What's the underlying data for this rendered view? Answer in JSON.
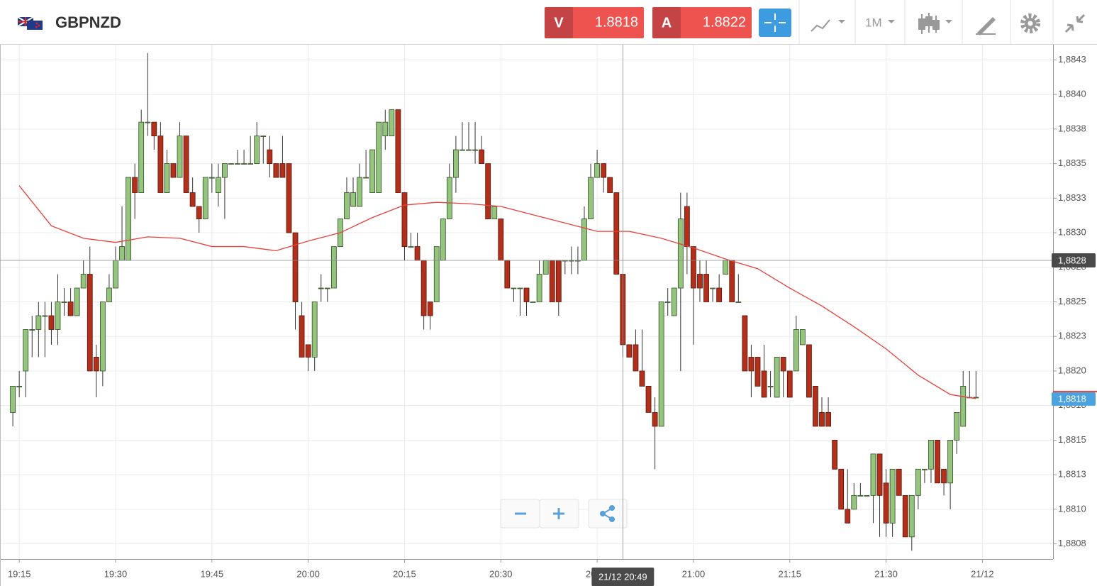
{
  "header": {
    "symbol": "GBPNZD",
    "sell_label": "V",
    "sell_price": "1.8818",
    "buy_label": "A",
    "buy_price": "1.8822",
    "timeframe": "1M"
  },
  "chart_data": {
    "type": "candlestick",
    "up_color": "#94c47d",
    "down_color": "#b1301c",
    "x": [
      "19:14",
      "19:15",
      "19:16",
      "19:17",
      "19:18",
      "19:19",
      "19:20",
      "19:21",
      "19:22",
      "19:23",
      "19:24",
      "19:25",
      "19:26",
      "19:27",
      "19:28",
      "19:29",
      "19:30",
      "19:31",
      "19:32",
      "19:33",
      "19:34",
      "19:35",
      "19:36",
      "19:37",
      "19:38",
      "19:39",
      "19:40",
      "19:41",
      "19:42",
      "19:43",
      "19:44",
      "19:45",
      "19:46",
      "19:47",
      "19:48",
      "19:49",
      "19:50",
      "19:51",
      "19:52",
      "19:53",
      "19:54",
      "19:55",
      "19:56",
      "19:57",
      "19:58",
      "19:59",
      "20:00",
      "20:01",
      "20:02",
      "20:03",
      "20:04",
      "20:05",
      "20:06",
      "20:07",
      "20:08",
      "20:09",
      "20:10",
      "20:11",
      "20:12",
      "20:13",
      "20:14",
      "20:15",
      "20:16",
      "20:17",
      "20:18",
      "20:19",
      "20:20",
      "20:21",
      "20:22",
      "20:23",
      "20:24",
      "20:25",
      "20:26",
      "20:27",
      "20:28",
      "20:29",
      "20:30",
      "20:31",
      "20:32",
      "20:33",
      "20:34",
      "20:35",
      "20:36",
      "20:37",
      "20:38",
      "20:39",
      "20:40",
      "20:41",
      "20:42",
      "20:43",
      "20:44",
      "20:45",
      "20:46",
      "20:47",
      "20:48",
      "20:49",
      "20:50",
      "20:51",
      "20:52",
      "20:53",
      "20:54",
      "20:55",
      "20:56",
      "20:57",
      "20:58",
      "20:59",
      "21:00",
      "21:01",
      "21:02",
      "21:03",
      "21:04",
      "21:05",
      "21:06",
      "21:07",
      "21:08",
      "21:09",
      "21:10",
      "21:11",
      "21:12",
      "21:13",
      "21:14",
      "21:15",
      "21:16",
      "21:17",
      "21:18",
      "21:19",
      "21:20",
      "21:21",
      "21:22",
      "21:23",
      "21:24",
      "21:25",
      "21:26",
      "21:27",
      "21:28",
      "21:29",
      "21:30",
      "21:31",
      "21:32",
      "21:33",
      "21:34",
      "21:35",
      "21:36",
      "21:37",
      "21:38",
      "21:39",
      "21:40",
      "21:41",
      "21:42",
      "21:43",
      "21:44"
    ],
    "ohlc": [
      [
        1.88174,
        1.88193,
        1.88164,
        1.88193
      ],
      [
        1.88193,
        1.88204,
        1.88185,
        1.88193
      ],
      [
        1.88204,
        1.88234,
        1.88185,
        1.88234
      ],
      [
        1.88234,
        1.88244,
        1.88214,
        1.88234
      ],
      [
        1.88234,
        1.88254,
        1.88214,
        1.88244
      ],
      [
        1.88244,
        1.88254,
        1.88214,
        1.88244
      ],
      [
        1.88244,
        1.88254,
        1.88223,
        1.88234
      ],
      [
        1.88234,
        1.88274,
        1.88223,
        1.88254
      ],
      [
        1.88254,
        1.88264,
        1.88244,
        1.88254
      ],
      [
        1.88254,
        1.88264,
        1.88244,
        1.88244
      ],
      [
        1.88244,
        1.88264,
        1.88244,
        1.88264
      ],
      [
        1.88264,
        1.88284,
        1.88264,
        1.88274
      ],
      [
        1.88274,
        1.88294,
        1.88204,
        1.88204
      ],
      [
        1.88214,
        1.88223,
        1.88185,
        1.88204
      ],
      [
        1.88204,
        1.88254,
        1.88193,
        1.88254
      ],
      [
        1.88254,
        1.88274,
        1.88254,
        1.88264
      ],
      [
        1.88264,
        1.88294,
        1.88264,
        1.88284
      ],
      [
        1.88284,
        1.88323,
        1.88284,
        1.88294
      ],
      [
        1.88284,
        1.88344,
        1.88284,
        1.88344
      ],
      [
        1.88344,
        1.88354,
        1.88314,
        1.88333
      ],
      [
        1.88333,
        1.88393,
        1.88333,
        1.88384
      ],
      [
        1.88384,
        1.88434,
        1.88374,
        1.88384
      ],
      [
        1.88384,
        1.88384,
        1.88364,
        1.88374
      ],
      [
        1.88374,
        1.88384,
        1.88333,
        1.88333
      ],
      [
        1.88333,
        1.88364,
        1.88333,
        1.88354
      ],
      [
        1.88354,
        1.88354,
        1.88344,
        1.88344
      ],
      [
        1.88344,
        1.88384,
        1.88344,
        1.88374
      ],
      [
        1.88374,
        1.88374,
        1.88333,
        1.88333
      ],
      [
        1.88333,
        1.88344,
        1.88323,
        1.88323
      ],
      [
        1.88323,
        1.88323,
        1.88304,
        1.88314
      ],
      [
        1.88314,
        1.88344,
        1.88314,
        1.88344
      ],
      [
        1.88344,
        1.88354,
        1.88333,
        1.88344
      ],
      [
        1.88333,
        1.88354,
        1.88323,
        1.88344
      ],
      [
        1.88344,
        1.88354,
        1.88314,
        1.88354
      ],
      [
        1.88354,
        1.88354,
        1.88354,
        1.88354
      ],
      [
        1.88354,
        1.88364,
        1.88354,
        1.88354
      ],
      [
        1.88354,
        1.88364,
        1.88354,
        1.88354
      ],
      [
        1.88354,
        1.88374,
        1.88354,
        1.88354
      ],
      [
        1.88354,
        1.88384,
        1.88354,
        1.88374
      ],
      [
        1.88374,
        1.88374,
        1.88354,
        1.88374
      ],
      [
        1.88364,
        1.88374,
        1.88344,
        1.88354
      ],
      [
        1.88354,
        1.88354,
        1.88344,
        1.88344
      ],
      [
        1.88354,
        1.88374,
        1.88344,
        1.88344
      ],
      [
        1.88354,
        1.88354,
        1.88304,
        1.88304
      ],
      [
        1.88304,
        1.88304,
        1.88234,
        1.88254
      ],
      [
        1.88244,
        1.88254,
        1.88214,
        1.88214
      ],
      [
        1.88223,
        1.88223,
        1.88204,
        1.88214
      ],
      [
        1.88214,
        1.88254,
        1.88204,
        1.88254
      ],
      [
        1.88264,
        1.88274,
        1.88254,
        1.88264
      ],
      [
        1.88264,
        1.88264,
        1.88254,
        1.88264
      ],
      [
        1.88264,
        1.88294,
        1.88264,
        1.88294
      ],
      [
        1.88294,
        1.88314,
        1.88294,
        1.88314
      ],
      [
        1.88314,
        1.88344,
        1.88314,
        1.88333
      ],
      [
        1.88323,
        1.88344,
        1.88323,
        1.88333
      ],
      [
        1.88323,
        1.88354,
        1.88323,
        1.88344
      ],
      [
        1.88344,
        1.88364,
        1.88344,
        1.88344
      ],
      [
        1.88333,
        1.88364,
        1.88333,
        1.88364
      ],
      [
        1.88333,
        1.88384,
        1.88333,
        1.88384
      ],
      [
        1.88374,
        1.88393,
        1.88364,
        1.88384
      ],
      [
        1.88374,
        1.88393,
        1.88374,
        1.88393
      ],
      [
        1.88393,
        1.88393,
        1.88333,
        1.88333
      ],
      [
        1.88333,
        1.88333,
        1.88284,
        1.88294
      ],
      [
        1.88294,
        1.88304,
        1.88294,
        1.88294
      ],
      [
        1.88294,
        1.88304,
        1.88284,
        1.88284
      ],
      [
        1.88284,
        1.88284,
        1.88234,
        1.88244
      ],
      [
        1.88254,
        1.88254,
        1.88234,
        1.88244
      ],
      [
        1.88254,
        1.88294,
        1.88254,
        1.88294
      ],
      [
        1.88284,
        1.88314,
        1.88284,
        1.88314
      ],
      [
        1.88314,
        1.88354,
        1.88314,
        1.88344
      ],
      [
        1.88344,
        1.88374,
        1.88333,
        1.88364
      ],
      [
        1.88364,
        1.88384,
        1.88364,
        1.88364
      ],
      [
        1.88364,
        1.88384,
        1.88364,
        1.88364
      ],
      [
        1.88364,
        1.88384,
        1.88354,
        1.88364
      ],
      [
        1.88364,
        1.88374,
        1.88354,
        1.88354
      ],
      [
        1.88354,
        1.88354,
        1.88314,
        1.88314
      ],
      [
        1.88314,
        1.88323,
        1.88314,
        1.88323
      ],
      [
        1.88314,
        1.88314,
        1.88284,
        1.88284
      ],
      [
        1.88284,
        1.88284,
        1.88264,
        1.88264
      ],
      [
        1.88264,
        1.88264,
        1.88254,
        1.88264
      ],
      [
        1.88264,
        1.88264,
        1.88244,
        1.88264
      ],
      [
        1.88264,
        1.88264,
        1.88244,
        1.88254
      ],
      [
        1.88254,
        1.88254,
        1.88254,
        1.88254
      ],
      [
        1.88254,
        1.88284,
        1.88254,
        1.88274
      ],
      [
        1.88274,
        1.88284,
        1.88274,
        1.88284
      ],
      [
        1.88284,
        1.88284,
        1.88254,
        1.88254
      ],
      [
        1.88284,
        1.88284,
        1.88244,
        1.88254
      ],
      [
        1.88284,
        1.88284,
        1.88274,
        1.88284
      ],
      [
        1.88284,
        1.88294,
        1.88274,
        1.88284
      ],
      [
        1.88284,
        1.88294,
        1.88274,
        1.88284
      ],
      [
        1.88284,
        1.88323,
        1.88284,
        1.88314
      ],
      [
        1.88314,
        1.88354,
        1.88314,
        1.88344
      ],
      [
        1.88344,
        1.88364,
        1.88344,
        1.88354
      ],
      [
        1.88354,
        1.88354,
        1.88333,
        1.88344
      ],
      [
        1.88344,
        1.88344,
        1.88333,
        1.88333
      ],
      [
        1.88333,
        1.88333,
        1.88274,
        1.88274
      ],
      [
        1.88274,
        1.88274,
        1.88214,
        1.88223
      ],
      [
        1.88223,
        1.88223,
        1.88214,
        1.88214
      ],
      [
        1.88223,
        1.88234,
        1.88204,
        1.88204
      ],
      [
        1.88204,
        1.88234,
        1.88193,
        1.88193
      ],
      [
        1.88193,
        1.88193,
        1.88174,
        1.88174
      ],
      [
        1.88174,
        1.88185,
        1.88133,
        1.88164
      ],
      [
        1.88164,
        1.88254,
        1.88164,
        1.88254
      ],
      [
        1.88254,
        1.88264,
        1.88244,
        1.88254
      ],
      [
        1.88244,
        1.88264,
        1.88244,
        1.88264
      ],
      [
        1.88264,
        1.88333,
        1.88204,
        1.88314
      ],
      [
        1.88323,
        1.88333,
        1.88274,
        1.88294
      ],
      [
        1.88294,
        1.88294,
        1.88223,
        1.88264
      ],
      [
        1.88274,
        1.88284,
        1.88254,
        1.88264
      ],
      [
        1.88274,
        1.88284,
        1.88254,
        1.88254
      ],
      [
        1.88264,
        1.88264,
        1.88254,
        1.88264
      ],
      [
        1.88264,
        1.88274,
        1.88254,
        1.88254
      ],
      [
        1.88274,
        1.88284,
        1.88274,
        1.88284
      ],
      [
        1.88284,
        1.88284,
        1.88254,
        1.88254
      ],
      [
        1.88254,
        1.88274,
        1.88254,
        1.88254
      ],
      [
        1.88244,
        1.88244,
        1.88204,
        1.88204
      ],
      [
        1.88214,
        1.88223,
        1.88185,
        1.88204
      ],
      [
        1.88214,
        1.88214,
        1.88193,
        1.88193
      ],
      [
        1.88204,
        1.88223,
        1.88185,
        1.88185
      ],
      [
        1.88193,
        1.88204,
        1.88185,
        1.88193
      ],
      [
        1.88185,
        1.88214,
        1.88185,
        1.88214
      ],
      [
        1.88214,
        1.88214,
        1.88185,
        1.88204
      ],
      [
        1.88204,
        1.88204,
        1.88185,
        1.88185
      ],
      [
        1.88204,
        1.88244,
        1.88204,
        1.88234
      ],
      [
        1.88223,
        1.88234,
        1.88223,
        1.88234
      ],
      [
        1.88223,
        1.88223,
        1.88185,
        1.88185
      ],
      [
        1.88193,
        1.88193,
        1.88164,
        1.88164
      ],
      [
        1.88174,
        1.88185,
        1.88164,
        1.88164
      ],
      [
        1.88174,
        1.88185,
        1.88164,
        1.88164
      ],
      [
        1.88154,
        1.88154,
        1.88133,
        1.88133
      ],
      [
        1.88133,
        1.88133,
        1.88104,
        1.88104
      ],
      [
        1.88104,
        1.88133,
        1.88094,
        1.88094
      ],
      [
        1.88104,
        1.88123,
        1.88104,
        1.88114
      ],
      [
        1.88114,
        1.88123,
        1.88114,
        1.88114
      ],
      [
        1.88114,
        1.88114,
        1.88114,
        1.88114
      ],
      [
        1.88114,
        1.88144,
        1.88094,
        1.88144
      ],
      [
        1.88144,
        1.88144,
        1.88084,
        1.88114
      ],
      [
        1.88123,
        1.88133,
        1.88084,
        1.88094
      ],
      [
        1.88094,
        1.88133,
        1.88084,
        1.88133
      ],
      [
        1.88133,
        1.88133,
        1.88114,
        1.88114
      ],
      [
        1.88114,
        1.88114,
        1.88084,
        1.88084
      ],
      [
        1.88084,
        1.88114,
        1.88074,
        1.88114
      ],
      [
        1.88114,
        1.88133,
        1.88104,
        1.88133
      ],
      [
        1.88133,
        1.88133,
        1.88123,
        1.88133
      ],
      [
        1.88133,
        1.88154,
        1.88123,
        1.88154
      ],
      [
        1.88154,
        1.88154,
        1.88123,
        1.88123
      ],
      [
        1.88133,
        1.88133,
        1.88114,
        1.88123
      ],
      [
        1.88123,
        1.88154,
        1.88104,
        1.88154
      ],
      [
        1.88154,
        1.88174,
        1.88144,
        1.88174
      ],
      [
        1.88164,
        1.88204,
        1.88164,
        1.88193
      ],
      [
        1.88185,
        1.88204,
        1.88185,
        1.88185
      ],
      [
        1.88185,
        1.88204,
        1.88185,
        1.88185
      ]
    ],
    "overlays": [
      {
        "type": "line",
        "color": "#e8403a",
        "x": [
          "19:15",
          "19:20",
          "19:25",
          "19:30",
          "19:35",
          "19:40",
          "19:45",
          "19:50",
          "19:55",
          "20:00",
          "20:05",
          "20:10",
          "20:15",
          "20:20",
          "20:25",
          "20:30",
          "20:35",
          "20:40",
          "20:45",
          "20:50",
          "20:55",
          "21:00",
          "21:05",
          "21:10",
          "21:15",
          "21:20",
          "21:25",
          "21:30",
          "21:35",
          "21:40",
          "21:44"
        ],
        "values": [
          1.88338,
          1.88309,
          1.883,
          1.88297,
          1.88301,
          1.883,
          1.88294,
          1.88294,
          1.88291,
          1.88298,
          1.88304,
          1.88315,
          1.88324,
          1.88326,
          1.88325,
          1.88323,
          1.88317,
          1.88311,
          1.88305,
          1.88305,
          1.883,
          1.88293,
          1.88285,
          1.88278,
          1.88264,
          1.88251,
          1.88236,
          1.8822,
          1.88201,
          1.88187,
          1.88184
        ]
      }
    ],
    "xlim": [
      "19:12",
      "21:56"
    ],
    "xticks": [
      "19:15",
      "19:30",
      "19:45",
      "20:00",
      "20:15",
      "20:30",
      "20:45",
      "21:00",
      "21:15",
      "21:30",
      {
        "value": "21:45",
        "label": "21/12"
      }
    ],
    "ylim": [
      1.88068,
      1.8844
    ],
    "yticks": [
      {
        "value": 1.88079,
        "label": "1,8808"
      },
      {
        "value": 1.88104,
        "label": "1,8810"
      },
      {
        "value": 1.88129,
        "label": "1,8813"
      },
      {
        "value": 1.88154,
        "label": "1,8815"
      },
      {
        "value": 1.88179,
        "label": "1,8818"
      },
      {
        "value": 1.88204,
        "label": "1,8820"
      },
      {
        "value": 1.88229,
        "label": "1,8823"
      },
      {
        "value": 1.88254,
        "label": "1,8825"
      },
      {
        "value": 1.88279,
        "label": "1,8828"
      },
      {
        "value": 1.88304,
        "label": "1,8830"
      },
      {
        "value": 1.88329,
        "label": "1,8833"
      },
      {
        "value": 1.88354,
        "label": "1,8835"
      },
      {
        "value": 1.88379,
        "label": "1,8838"
      },
      {
        "value": 1.88404,
        "label": "1,8840"
      },
      {
        "value": 1.88429,
        "label": "1,8843"
      }
    ],
    "grid": true,
    "crosshair": {
      "y": {
        "value": 1.88284,
        "label": "1,8828"
      },
      "x": {
        "value": "20:49",
        "label": "21/12 20:49"
      }
    },
    "current_price": {
      "value": 1.88184,
      "label": "1,8818"
    }
  }
}
